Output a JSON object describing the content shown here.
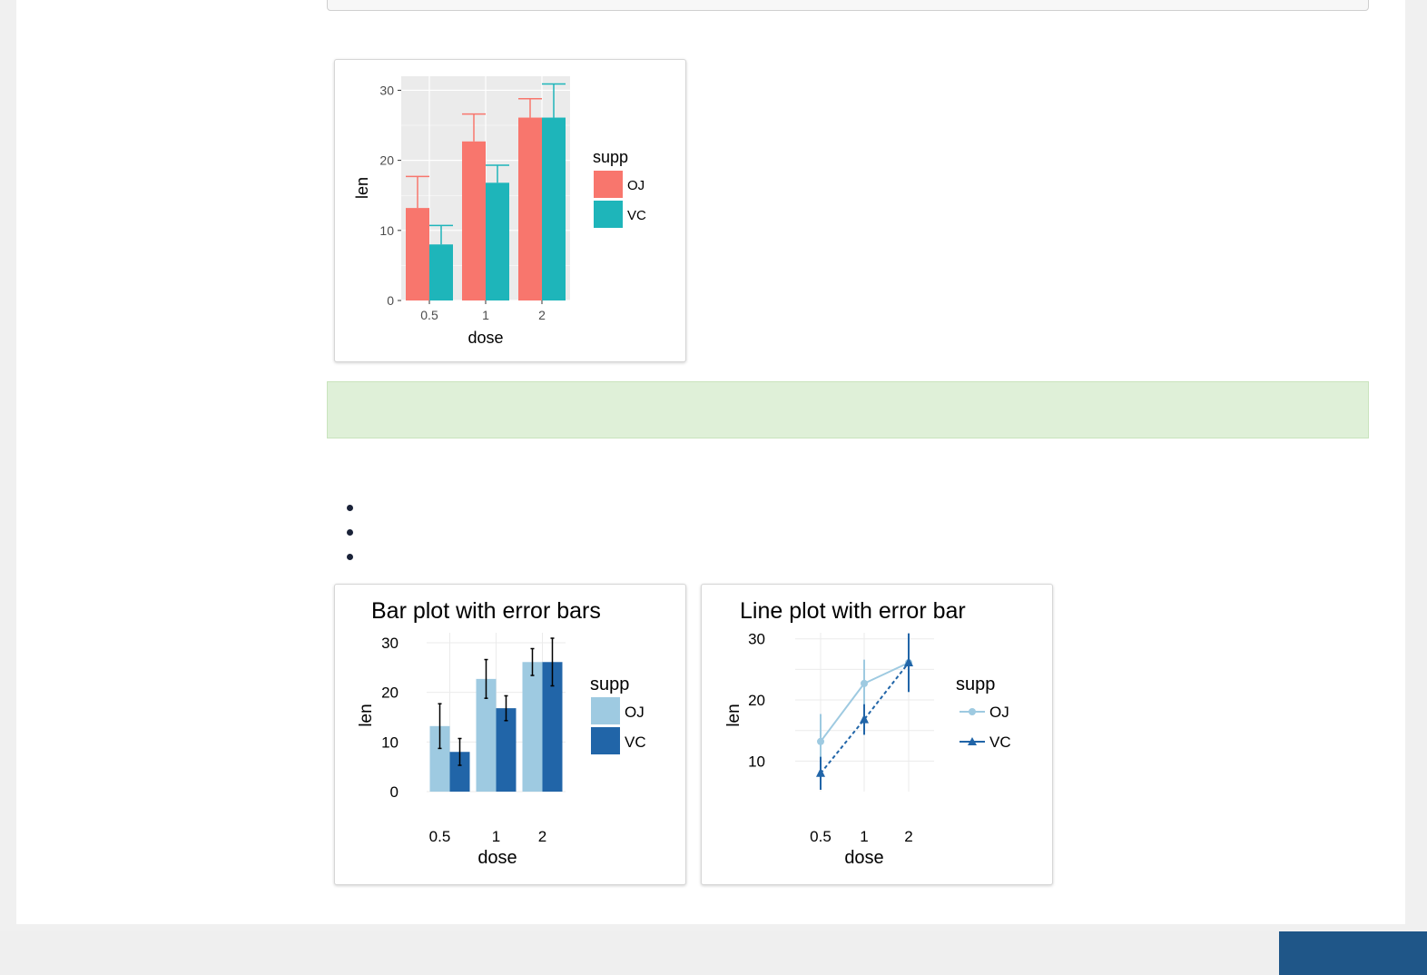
{
  "page": {
    "bullet_count": 3,
    "colors": {
      "note_bg": "#dff0d8",
      "footer_button": "#1f5688",
      "bullet": "#1a2238"
    }
  },
  "chart_data": [
    {
      "type": "bar",
      "title": "",
      "xlabel": "dose",
      "ylabel": "len",
      "categories": [
        "0.5",
        "1",
        "2"
      ],
      "ylim": [
        0,
        32
      ],
      "yticks": [
        0,
        10,
        20,
        30
      ],
      "grid": true,
      "legend": {
        "title": "supp",
        "position": "right"
      },
      "series": [
        {
          "name": "OJ",
          "color": "#f8766d",
          "values": [
            13.2,
            22.7,
            26.1
          ],
          "errors": [
            4.5,
            3.9,
            2.7
          ]
        },
        {
          "name": "VC",
          "color": "#1eb5ba",
          "values": [
            8.0,
            16.8,
            26.1
          ],
          "errors": [
            2.7,
            2.5,
            4.8
          ]
        }
      ],
      "error_bars": "upper",
      "theme": "grey-panel"
    },
    {
      "type": "bar",
      "title": "Bar plot with error bars",
      "xlabel": "dose",
      "ylabel": "len",
      "categories": [
        "0.5",
        "1",
        "2"
      ],
      "ylim": [
        0,
        32
      ],
      "yticks": [
        0,
        10,
        20,
        30
      ],
      "grid": true,
      "legend": {
        "title": "supp",
        "position": "right"
      },
      "series": [
        {
          "name": "OJ",
          "color": "#9ecae1",
          "values": [
            13.2,
            22.7,
            26.1
          ],
          "errors": [
            4.5,
            3.9,
            2.7
          ]
        },
        {
          "name": "VC",
          "color": "#2165a8",
          "values": [
            8.0,
            16.8,
            26.1
          ],
          "errors": [
            2.7,
            2.5,
            4.8
          ]
        }
      ],
      "error_bars": "both",
      "theme": "minimal"
    },
    {
      "type": "line",
      "title": "Line plot with error bar",
      "xlabel": "dose",
      "ylabel": "len",
      "categories": [
        "0.5",
        "1",
        "2"
      ],
      "ylim": [
        5,
        31
      ],
      "yticks": [
        10,
        20,
        30
      ],
      "grid": true,
      "legend": {
        "title": "supp",
        "position": "right"
      },
      "series": [
        {
          "name": "OJ",
          "color": "#9ecae1",
          "marker": "circle",
          "line": "solid",
          "values": [
            13.2,
            22.7,
            26.1
          ],
          "errors": [
            4.5,
            3.9,
            2.7
          ]
        },
        {
          "name": "VC",
          "color": "#2165a8",
          "marker": "triangle",
          "line": "dashed",
          "values": [
            8.0,
            16.8,
            26.1
          ],
          "errors": [
            2.7,
            2.5,
            4.8
          ]
        }
      ],
      "theme": "minimal"
    }
  ]
}
